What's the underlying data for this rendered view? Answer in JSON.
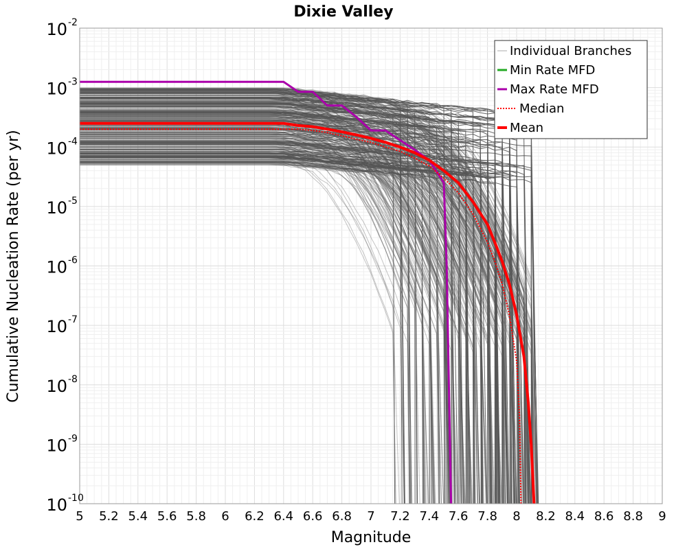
{
  "chart_data": {
    "type": "line",
    "title": "Dixie Valley",
    "xlabel": "Magnitude",
    "ylabel": "Cumulative Nucleation Rate (per yr)",
    "xlim": [
      5,
      9
    ],
    "ylim": [
      1e-10,
      0.01
    ],
    "yscale": "log",
    "grid": true,
    "legend_position": "top-right",
    "x_ticks": [
      "5",
      "5.2",
      "5.4",
      "5.6",
      "5.8",
      "6",
      "6.2",
      "6.4",
      "6.6",
      "6.8",
      "7",
      "7.2",
      "7.4",
      "7.6",
      "7.8",
      "8",
      "8.2",
      "8.4",
      "8.6",
      "8.8",
      "9"
    ],
    "y_ticks": [
      {
        "base": "10",
        "exp": "-2",
        "value": 0.01
      },
      {
        "base": "10",
        "exp": "-3",
        "value": 0.001
      },
      {
        "base": "10",
        "exp": "-4",
        "value": 0.0001
      },
      {
        "base": "10",
        "exp": "-5",
        "value": 1e-05
      },
      {
        "base": "10",
        "exp": "-6",
        "value": 1e-06
      },
      {
        "base": "10",
        "exp": "-7",
        "value": 1e-07
      },
      {
        "base": "10",
        "exp": "-8",
        "value": 1e-08
      },
      {
        "base": "10",
        "exp": "-9",
        "value": 1e-09
      },
      {
        "base": "10",
        "exp": "-10",
        "value": 1e-10
      }
    ],
    "series": [
      {
        "name": "Max Rate MFD",
        "color": "#aa00aa",
        "style": "solid",
        "x": [
          5.0,
          6.4,
          6.5,
          6.6,
          6.7,
          6.8,
          6.9,
          7.0,
          7.1,
          7.2,
          7.3,
          7.4,
          7.5,
          7.52,
          7.55
        ],
        "y": [
          0.00125,
          0.00125,
          0.00085,
          0.00085,
          0.0005,
          0.0005,
          0.00032,
          0.00019,
          0.00019,
          0.00013,
          9e-05,
          6e-05,
          2.5e-05,
          1e-06,
          1e-10
        ]
      },
      {
        "name": "Median",
        "color": "#ff0000",
        "style": "dotted",
        "x": [
          5.0,
          6.4,
          6.5,
          6.6,
          6.7,
          6.8,
          6.9,
          7.0,
          7.1,
          7.2,
          7.3,
          7.4,
          7.5,
          7.6,
          7.7,
          7.8,
          7.85,
          7.9,
          7.95,
          8.0,
          8.02,
          8.03
        ],
        "y": [
          0.0002,
          0.0002,
          0.0002,
          0.00019,
          0.000175,
          0.000155,
          0.000135,
          0.00012,
          0.0001,
          8.5e-05,
          6.5e-05,
          4.8e-05,
          3e-05,
          1.7e-05,
          7.5e-06,
          2.5e-06,
          1.2e-06,
          5e-07,
          1.5e-07,
          2.5e-08,
          3e-09,
          1e-10
        ]
      },
      {
        "name": "Mean",
        "color": "#ff0000",
        "style": "solid",
        "x": [
          5.0,
          6.4,
          6.5,
          6.6,
          6.7,
          6.8,
          6.9,
          7.0,
          7.1,
          7.2,
          7.3,
          7.4,
          7.5,
          7.6,
          7.7,
          7.8,
          7.85,
          7.9,
          7.95,
          8.0,
          8.05,
          8.08,
          8.1,
          8.12
        ],
        "y": [
          0.00025,
          0.00025,
          0.00023,
          0.00022,
          0.0002,
          0.00018,
          0.00016,
          0.00014,
          0.00012,
          0.0001,
          8e-05,
          6e-05,
          4e-05,
          2.5e-05,
          1.2e-05,
          5e-06,
          2.5e-06,
          1.2e-06,
          5e-07,
          1.5e-07,
          3e-08,
          5e-09,
          1e-09,
          1e-10
        ]
      }
    ],
    "individual_branches": {
      "name": "Individual Branches",
      "color": "#555555",
      "plateau_range": [
        5e-05,
        0.001
      ],
      "cutoff_range": [
        7.15,
        8.15
      ],
      "count": 400
    },
    "legend": [
      {
        "label": "Individual Branches",
        "color": "#aaaaaa",
        "style": "thin"
      },
      {
        "label": "Min Rate MFD",
        "color": "#22aa22",
        "style": "solid"
      },
      {
        "label": "Max Rate MFD",
        "color": "#aa00aa",
        "style": "solid"
      },
      {
        "label": "Median",
        "color": "#ff0000",
        "style": "dotted"
      },
      {
        "label": "Mean",
        "color": "#ff0000",
        "style": "thick"
      }
    ]
  }
}
